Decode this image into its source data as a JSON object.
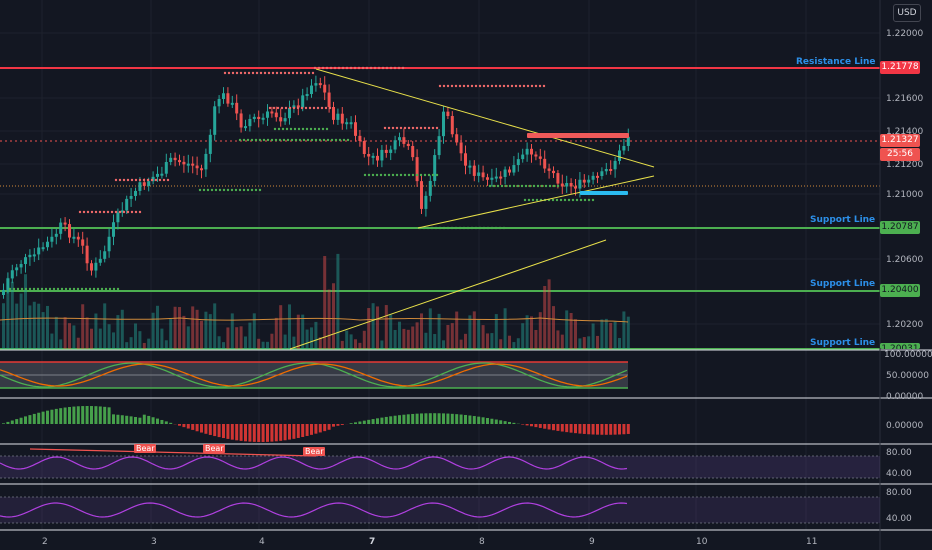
{
  "currency": "USD",
  "price_axis": {
    "main_ticks": [
      "1.22000",
      "1.21600",
      "1.21400",
      "1.21200",
      "1.21000",
      "1.20600",
      "1.20200"
    ],
    "current_price": "1.21327",
    "countdown": "25:56"
  },
  "lines": {
    "resistance": {
      "label": "Resistance Line",
      "price": "1.21778"
    },
    "support1": {
      "label": "Support Line",
      "price": "1.20787"
    },
    "support2": {
      "label": "Support Line",
      "price": "1.20400"
    },
    "support3": {
      "label": "Support Line",
      "price": "1.20031"
    }
  },
  "stoch_axis": [
    "100.00000",
    "50.00000",
    "0.00000"
  ],
  "macd_axis": [
    "0.00000"
  ],
  "rsi_axis": [
    "80.00",
    "40.00"
  ],
  "rsi2_axis": [
    "80.00",
    "40.00"
  ],
  "bear_labels": [
    "Bear",
    "Bear",
    "Bear"
  ],
  "time_axis": [
    "2",
    "3",
    "4",
    "7",
    "8",
    "9",
    "10",
    "11"
  ],
  "colors": {
    "bull": "#26a69a",
    "bear": "#ef5350",
    "support": "#4caf50",
    "resistance": "#f23645",
    "label_blue": "#2c8fe8",
    "trend": "#e8e04a"
  }
}
